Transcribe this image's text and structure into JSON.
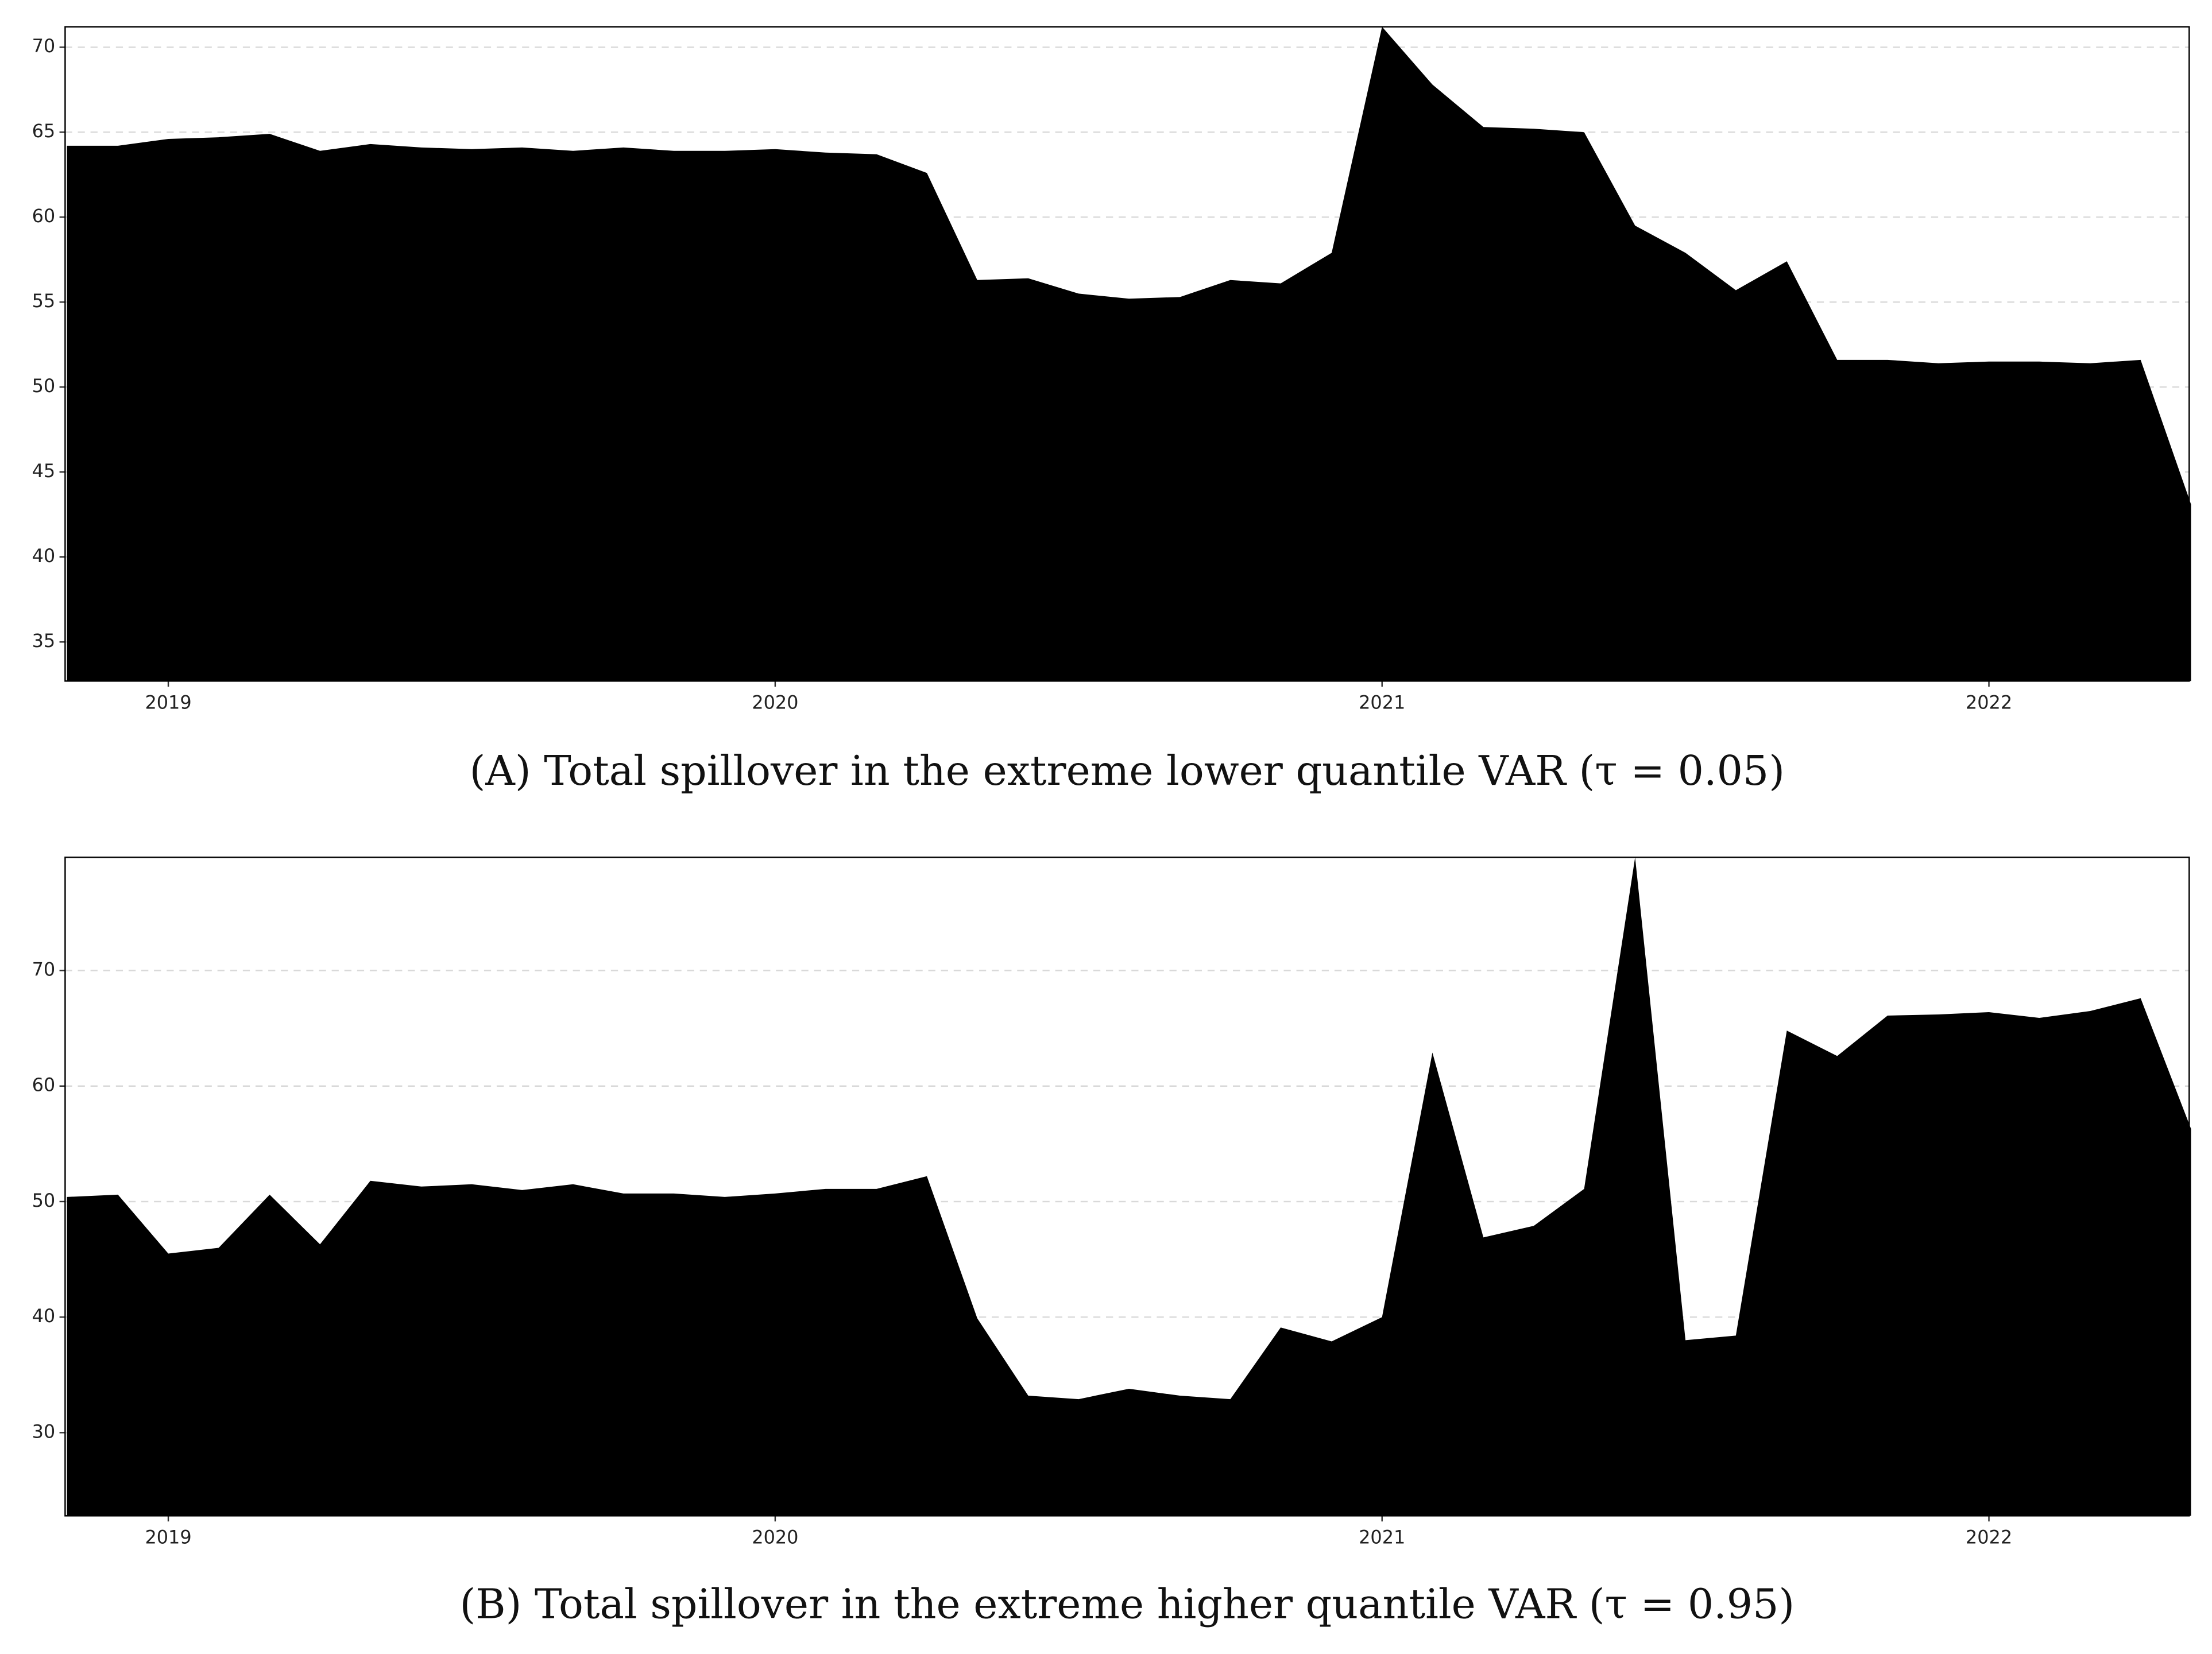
{
  "chart_data": [
    {
      "type": "area",
      "caption": "(A) Total spillover in the extreme lower quantile VAR (τ = 0.05)",
      "color": "#000000",
      "grid": true,
      "x": [
        2018.833,
        2018.917,
        2019.0,
        2019.083,
        2019.167,
        2019.25,
        2019.333,
        2019.417,
        2019.5,
        2019.583,
        2019.667,
        2019.75,
        2019.833,
        2019.917,
        2020.0,
        2020.083,
        2020.167,
        2020.25,
        2020.333,
        2020.417,
        2020.5,
        2020.583,
        2020.667,
        2020.75,
        2020.833,
        2020.917,
        2021.0,
        2021.083,
        2021.167,
        2021.25,
        2021.333,
        2021.417,
        2021.5,
        2021.583,
        2021.667,
        2021.75,
        2021.833,
        2021.917,
        2022.0,
        2022.083,
        2022.167,
        2022.25,
        2022.333
      ],
      "values": [
        64.2,
        64.2,
        64.6,
        64.7,
        64.9,
        63.9,
        64.3,
        64.1,
        64.0,
        64.1,
        63.9,
        64.1,
        63.9,
        63.9,
        64.0,
        63.8,
        63.7,
        62.6,
        56.3,
        56.4,
        55.5,
        55.2,
        55.3,
        56.3,
        56.1,
        57.9,
        71.2,
        67.8,
        65.3,
        65.2,
        65.0,
        59.5,
        57.9,
        55.7,
        57.4,
        51.6,
        51.6,
        51.4,
        51.5,
        51.5,
        51.4,
        51.6,
        43.1
      ],
      "xlim": [
        2018.83,
        2022.33
      ],
      "ylim": [
        32.7,
        71.2
      ],
      "xticks": [
        2019,
        2020,
        2021,
        2022
      ],
      "yticks": [
        35,
        40,
        45,
        50,
        55,
        60,
        65,
        70
      ]
    },
    {
      "type": "area",
      "caption": "(B) Total spillover in the extreme higher quantile VAR (τ = 0.95)",
      "color": "#000000",
      "grid": true,
      "x": [
        2018.833,
        2018.917,
        2019.0,
        2019.083,
        2019.167,
        2019.25,
        2019.333,
        2019.417,
        2019.5,
        2019.583,
        2019.667,
        2019.75,
        2019.833,
        2019.917,
        2020.0,
        2020.083,
        2020.167,
        2020.25,
        2020.333,
        2020.417,
        2020.5,
        2020.583,
        2020.667,
        2020.75,
        2020.833,
        2020.917,
        2021.0,
        2021.083,
        2021.167,
        2021.25,
        2021.333,
        2021.417,
        2021.5,
        2021.583,
        2021.667,
        2021.75,
        2021.833,
        2021.917,
        2022.0,
        2022.083,
        2022.167,
        2022.25,
        2022.333
      ],
      "values": [
        50.4,
        50.6,
        45.5,
        46.0,
        50.6,
        46.3,
        51.8,
        51.3,
        51.5,
        51.0,
        51.5,
        50.7,
        50.7,
        50.4,
        50.7,
        51.1,
        51.1,
        52.2,
        39.9,
        33.2,
        32.9,
        33.8,
        33.2,
        32.9,
        39.1,
        37.9,
        40.0,
        62.9,
        46.9,
        47.9,
        51.1,
        79.8,
        38.0,
        38.4,
        64.8,
        62.6,
        66.1,
        66.2,
        66.4,
        65.9,
        66.5,
        67.6,
        56.3
      ],
      "xlim": [
        2018.83,
        2022.33
      ],
      "ylim": [
        22.8,
        79.8
      ],
      "xticks": [
        2019,
        2020,
        2021,
        2022
      ],
      "yticks": [
        30,
        40,
        50,
        60,
        70
      ]
    }
  ]
}
